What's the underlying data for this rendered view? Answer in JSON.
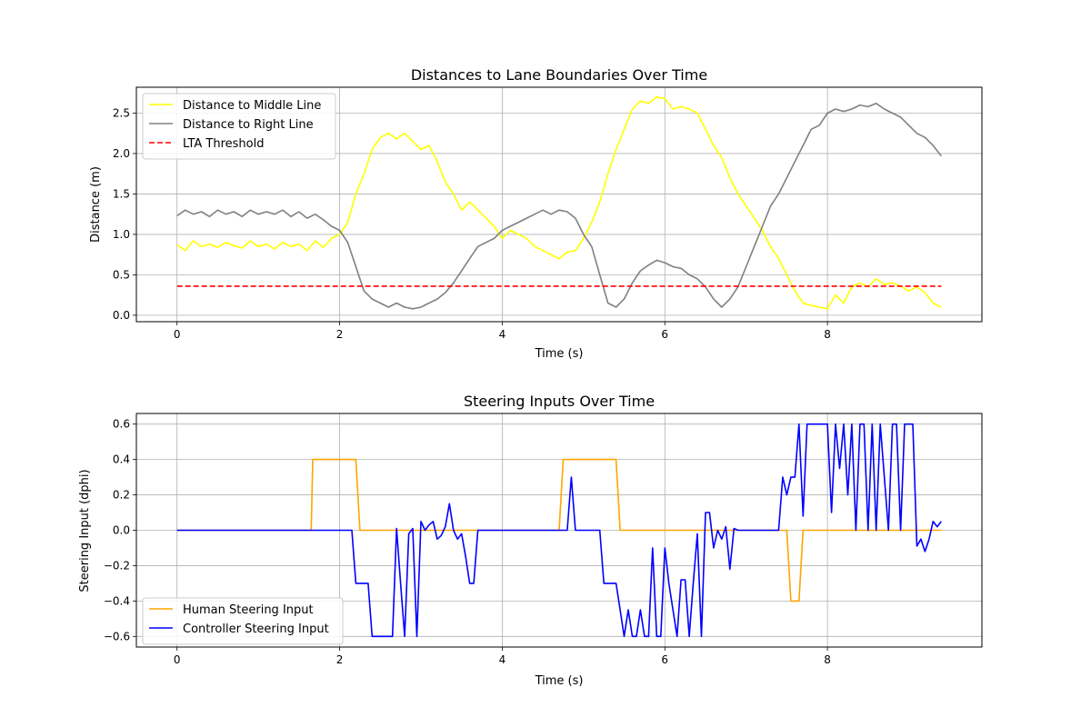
{
  "chart_data": [
    {
      "type": "line",
      "title": "Distances to Lane Boundaries Over Time",
      "xlabel": "Time (s)",
      "ylabel": "Distance (m)",
      "xlim": [
        -0.5,
        9.9
      ],
      "ylim": [
        -0.08,
        2.82
      ],
      "xticks": [
        0,
        2,
        4,
        6,
        8
      ],
      "yticks": [
        0.0,
        0.5,
        1.0,
        1.5,
        2.0,
        2.5
      ],
      "xtick_labels": [
        "0",
        "2",
        "4",
        "6",
        "8"
      ],
      "ytick_labels": [
        "0.0",
        "0.5",
        "1.0",
        "1.5",
        "2.0",
        "2.5"
      ],
      "grid": true,
      "legend_position": "upper-left",
      "series": [
        {
          "name": "Distance to Middle Line",
          "color": "#ffff00",
          "style": "solid",
          "x": [
            0,
            0.1,
            0.2,
            0.3,
            0.4,
            0.5,
            0.6,
            0.7,
            0.8,
            0.9,
            1.0,
            1.1,
            1.2,
            1.3,
            1.4,
            1.5,
            1.6,
            1.7,
            1.8,
            1.9,
            2.0,
            2.1,
            2.2,
            2.3,
            2.4,
            2.5,
            2.6,
            2.7,
            2.8,
            2.9,
            3.0,
            3.1,
            3.2,
            3.3,
            3.4,
            3.5,
            3.6,
            3.7,
            3.8,
            3.9,
            4.0,
            4.1,
            4.2,
            4.3,
            4.4,
            4.5,
            4.6,
            4.7,
            4.8,
            4.9,
            5.0,
            5.1,
            5.2,
            5.3,
            5.4,
            5.5,
            5.6,
            5.7,
            5.8,
            5.9,
            6.0,
            6.1,
            6.2,
            6.3,
            6.4,
            6.5,
            6.6,
            6.7,
            6.8,
            6.9,
            7.0,
            7.1,
            7.2,
            7.3,
            7.4,
            7.5,
            7.6,
            7.7,
            7.8,
            7.9,
            8.0,
            8.1,
            8.2,
            8.3,
            8.4,
            8.5,
            8.6,
            8.7,
            8.8,
            8.9,
            9.0,
            9.1,
            9.2,
            9.3,
            9.4
          ],
          "values": [
            0.87,
            0.8,
            0.92,
            0.85,
            0.88,
            0.84,
            0.9,
            0.86,
            0.83,
            0.92,
            0.85,
            0.88,
            0.82,
            0.9,
            0.85,
            0.88,
            0.8,
            0.92,
            0.84,
            0.95,
            1.0,
            1.15,
            1.5,
            1.75,
            2.05,
            2.2,
            2.25,
            2.18,
            2.25,
            2.15,
            2.05,
            2.1,
            1.9,
            1.65,
            1.5,
            1.3,
            1.4,
            1.3,
            1.2,
            1.1,
            0.95,
            1.05,
            1.0,
            0.95,
            0.85,
            0.8,
            0.75,
            0.7,
            0.78,
            0.8,
            0.95,
            1.15,
            1.4,
            1.75,
            2.05,
            2.3,
            2.55,
            2.65,
            2.62,
            2.7,
            2.68,
            2.55,
            2.58,
            2.55,
            2.5,
            2.3,
            2.1,
            1.95,
            1.7,
            1.5,
            1.35,
            1.2,
            1.05,
            0.85,
            0.7,
            0.5,
            0.3,
            0.15,
            0.12,
            0.1,
            0.08,
            0.25,
            0.15,
            0.35,
            0.4,
            0.35,
            0.45,
            0.38,
            0.4,
            0.36,
            0.3,
            0.35,
            0.28,
            0.15,
            0.1
          ]
        },
        {
          "name": "Distance to Right Line",
          "color": "#808080",
          "style": "solid",
          "x": [
            0,
            0.1,
            0.2,
            0.3,
            0.4,
            0.5,
            0.6,
            0.7,
            0.8,
            0.9,
            1.0,
            1.1,
            1.2,
            1.3,
            1.4,
            1.5,
            1.6,
            1.7,
            1.8,
            1.9,
            2.0,
            2.1,
            2.2,
            2.3,
            2.4,
            2.5,
            2.6,
            2.7,
            2.8,
            2.9,
            3.0,
            3.1,
            3.2,
            3.3,
            3.4,
            3.5,
            3.6,
            3.7,
            3.8,
            3.9,
            4.0,
            4.1,
            4.2,
            4.3,
            4.4,
            4.5,
            4.6,
            4.7,
            4.8,
            4.9,
            5.0,
            5.1,
            5.2,
            5.3,
            5.4,
            5.5,
            5.6,
            5.7,
            5.8,
            5.9,
            6.0,
            6.1,
            6.2,
            6.3,
            6.4,
            6.5,
            6.6,
            6.7,
            6.8,
            6.9,
            7.0,
            7.1,
            7.2,
            7.3,
            7.4,
            7.5,
            7.6,
            7.7,
            7.8,
            7.9,
            8.0,
            8.1,
            8.2,
            8.3,
            8.4,
            8.5,
            8.6,
            8.7,
            8.8,
            8.9,
            9.0,
            9.1,
            9.2,
            9.3,
            9.4
          ],
          "values": [
            1.23,
            1.3,
            1.25,
            1.28,
            1.22,
            1.3,
            1.25,
            1.28,
            1.22,
            1.3,
            1.25,
            1.28,
            1.25,
            1.3,
            1.22,
            1.28,
            1.2,
            1.25,
            1.18,
            1.1,
            1.05,
            0.9,
            0.6,
            0.3,
            0.2,
            0.15,
            0.1,
            0.15,
            0.1,
            0.08,
            0.1,
            0.15,
            0.2,
            0.28,
            0.4,
            0.55,
            0.7,
            0.85,
            0.9,
            0.95,
            1.05,
            1.1,
            1.15,
            1.2,
            1.25,
            1.3,
            1.25,
            1.3,
            1.28,
            1.2,
            1.0,
            0.85,
            0.5,
            0.15,
            0.1,
            0.2,
            0.4,
            0.55,
            0.62,
            0.68,
            0.65,
            0.6,
            0.58,
            0.5,
            0.45,
            0.35,
            0.2,
            0.1,
            0.2,
            0.35,
            0.6,
            0.85,
            1.1,
            1.35,
            1.5,
            1.7,
            1.9,
            2.1,
            2.3,
            2.35,
            2.5,
            2.55,
            2.52,
            2.55,
            2.6,
            2.58,
            2.62,
            2.55,
            2.5,
            2.45,
            2.35,
            2.25,
            2.2,
            2.1,
            1.97
          ]
        },
        {
          "name": "LTA Threshold",
          "color": "#ff0000",
          "style": "dashed",
          "x": [
            0,
            9.4
          ],
          "values": [
            0.36,
            0.36
          ]
        }
      ]
    },
    {
      "type": "line",
      "title": "Steering Inputs Over Time",
      "xlabel": "Time (s)",
      "ylabel": "Steering Input (dphi)",
      "xlim": [
        -0.5,
        9.9
      ],
      "ylim": [
        -0.66,
        0.66
      ],
      "xticks": [
        0,
        2,
        4,
        6,
        8
      ],
      "yticks": [
        -0.6,
        -0.4,
        -0.2,
        0.0,
        0.2,
        0.4,
        0.6
      ],
      "xtick_labels": [
        "0",
        "2",
        "4",
        "6",
        "8"
      ],
      "ytick_labels": [
        "−0.6",
        "−0.4",
        "−0.2",
        "0.0",
        "0.2",
        "0.4",
        "0.6"
      ],
      "grid": true,
      "legend_position": "lower-left",
      "series": [
        {
          "name": "Human Steering Input",
          "color": "#ffa500",
          "style": "solid",
          "x": [
            0,
            1.65,
            1.67,
            2.2,
            2.25,
            4.7,
            4.75,
            5.4,
            5.45,
            7.5,
            7.55,
            7.65,
            7.7,
            9.4
          ],
          "values": [
            0,
            0,
            0.4,
            0.4,
            0,
            0,
            0.4,
            0.4,
            0,
            0,
            -0.4,
            -0.4,
            0,
            0
          ]
        },
        {
          "name": "Controller Steering Input",
          "color": "#0000ff",
          "style": "solid",
          "x": [
            0,
            2.15,
            2.2,
            2.35,
            2.4,
            2.65,
            2.7,
            2.75,
            2.8,
            2.85,
            2.9,
            2.95,
            3.0,
            3.05,
            3.1,
            3.15,
            3.2,
            3.25,
            3.3,
            3.35,
            3.4,
            3.45,
            3.5,
            3.55,
            3.6,
            3.65,
            3.7,
            4.0,
            4.5,
            4.8,
            4.85,
            4.9,
            5.2,
            5.25,
            5.4,
            5.45,
            5.5,
            5.55,
            5.6,
            5.65,
            5.7,
            5.75,
            5.8,
            5.85,
            5.9,
            5.95,
            6.0,
            6.05,
            6.1,
            6.15,
            6.2,
            6.25,
            6.3,
            6.35,
            6.4,
            6.45,
            6.5,
            6.55,
            6.6,
            6.65,
            6.7,
            6.75,
            6.8,
            6.85,
            6.9,
            6.95,
            7.0,
            7.05,
            7.1,
            7.4,
            7.45,
            7.5,
            7.55,
            7.6,
            7.65,
            7.7,
            7.75,
            7.8,
            7.85,
            7.9,
            7.95,
            8.0,
            8.05,
            8.1,
            8.15,
            8.2,
            8.25,
            8.3,
            8.35,
            8.4,
            8.45,
            8.5,
            8.55,
            8.6,
            8.65,
            8.7,
            8.75,
            8.8,
            8.85,
            8.9,
            8.95,
            9.0,
            9.05,
            9.1,
            9.15,
            9.2,
            9.25,
            9.3,
            9.35,
            9.4
          ],
          "values": [
            0,
            0,
            -0.3,
            -0.3,
            -0.6,
            -0.6,
            0.01,
            -0.3,
            -0.6,
            -0.02,
            0.01,
            -0.6,
            0.05,
            0.0,
            0.03,
            0.05,
            -0.05,
            -0.03,
            0.02,
            0.15,
            0.0,
            -0.05,
            -0.02,
            -0.15,
            -0.3,
            -0.3,
            0.0,
            0.0,
            0.0,
            0.0,
            0.3,
            0.0,
            0.0,
            -0.3,
            -0.3,
            -0.45,
            -0.6,
            -0.45,
            -0.6,
            -0.6,
            -0.45,
            -0.6,
            -0.6,
            -0.1,
            -0.6,
            -0.6,
            -0.1,
            -0.3,
            -0.45,
            -0.6,
            -0.28,
            -0.28,
            -0.6,
            -0.3,
            -0.02,
            -0.6,
            0.1,
            0.1,
            -0.1,
            0.0,
            -0.05,
            0.02,
            -0.22,
            0.01,
            0.0,
            0.0,
            0.0,
            0.0,
            0.0,
            0.0,
            0.3,
            0.2,
            0.3,
            0.3,
            0.6,
            0.08,
            0.6,
            0.6,
            0.6,
            0.6,
            0.6,
            0.6,
            0.1,
            0.6,
            0.35,
            0.6,
            0.2,
            0.6,
            0.0,
            0.6,
            0.6,
            0.0,
            0.6,
            0.0,
            0.6,
            0.3,
            0.0,
            0.6,
            0.6,
            0.0,
            0.6,
            0.6,
            0.6,
            -0.09,
            -0.05,
            -0.12,
            -0.05,
            0.05,
            0.02,
            0.05
          ]
        }
      ]
    }
  ]
}
